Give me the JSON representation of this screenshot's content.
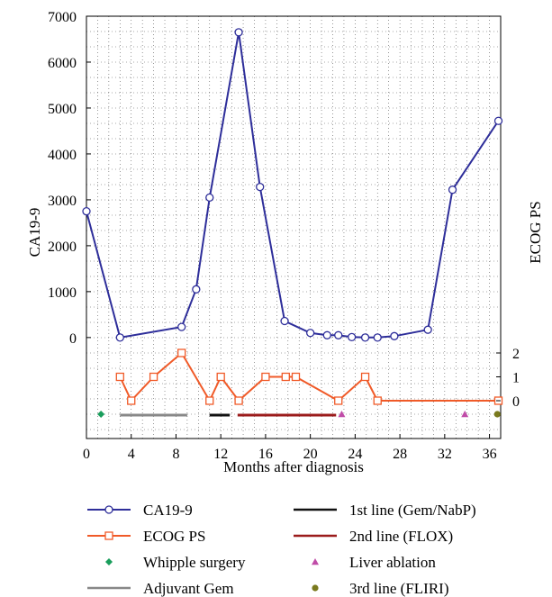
{
  "chart_data": {
    "type": "line",
    "xlabel": "Months after diagnosis",
    "ylabel_left": "CA19-9",
    "ylabel_right": "ECOG PS",
    "xlim": [
      0,
      37
    ],
    "x_ticks": [
      0,
      4,
      8,
      12,
      16,
      20,
      24,
      28,
      32,
      36
    ],
    "ylim_ca": [
      -2200,
      7000
    ],
    "y_ticks_ca": [
      0,
      1000,
      2000,
      3000,
      4000,
      5000,
      6000,
      7000
    ],
    "y_ticks_ecog": [
      0,
      1,
      2
    ],
    "grid": true,
    "series": [
      {
        "name": "CA19-9",
        "color": "#2e2e9a",
        "marker": "circle",
        "axis": "ca",
        "x": [
          0,
          3,
          8.5,
          9.8,
          11,
          13.6,
          15.5,
          17.7,
          20,
          21.5,
          22.5,
          23.7,
          24.9,
          26,
          27.5,
          30.5,
          32.7,
          36.8
        ],
        "values": [
          2750,
          0,
          230,
          1050,
          3050,
          6650,
          3280,
          360,
          100,
          50,
          50,
          10,
          0,
          0,
          30,
          170,
          3220,
          4720
        ]
      },
      {
        "name": "ECOG PS",
        "color": "#f05a28",
        "marker": "square",
        "axis": "ecog",
        "x": [
          3,
          4,
          6,
          8.5,
          11,
          12,
          13.6,
          16,
          17.8,
          18.7,
          22.5,
          24.9,
          26,
          36.8
        ],
        "values": [
          1,
          0,
          1,
          2,
          0,
          1,
          0,
          1,
          1,
          1,
          0,
          1,
          0,
          0
        ]
      }
    ],
    "bars": [
      {
        "name": "Adjuvant Gem",
        "color": "#888888",
        "x": [
          3,
          9
        ]
      },
      {
        "name": "1st line (Gem/NabP)",
        "color": "#111111",
        "x": [
          11,
          12.8
        ]
      },
      {
        "name": "2nd line (FLOX)",
        "color": "#9b1b1b",
        "x": [
          13.5,
          22.3
        ]
      }
    ],
    "events": [
      {
        "name": "Whipple surgery",
        "color": "#1a9e5c",
        "marker": "diamond",
        "x": [
          1.3
        ]
      },
      {
        "name": "Liver ablation",
        "color": "#c04ca8",
        "marker": "triangle",
        "x": [
          22.8,
          33.8
        ]
      },
      {
        "name": "3rd line (FLIRI)",
        "color": "#7a7a1e",
        "marker": "dot",
        "x": [
          36.7
        ]
      }
    ],
    "legend": {
      "placement": "bottom",
      "left": [
        "CA19-9",
        "ECOG PS",
        "Whipple surgery",
        "Adjuvant Gem"
      ],
      "right": [
        "1st line (Gem/NabP)",
        "2nd line (FLOX)",
        "Liver ablation",
        "3rd line (FLIRI)"
      ]
    }
  }
}
